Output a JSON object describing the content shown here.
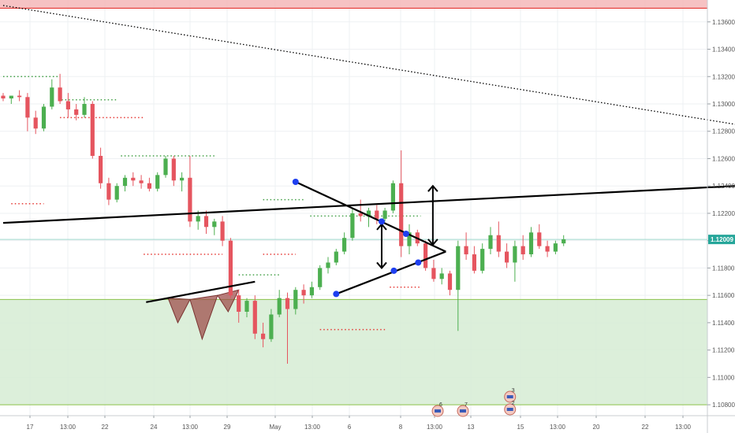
{
  "chart_data": {
    "type": "candlestick",
    "y_axis": {
      "position": "right",
      "range": [
        1.1072,
        1.1376
      ],
      "ticks": [
        1.136,
        1.134,
        1.132,
        1.13,
        1.128,
        1.126,
        1.124,
        1.122,
        1.12,
        1.118,
        1.116,
        1.114,
        1.112,
        1.11,
        1.108
      ],
      "tick_labels": [
        "1.13600",
        "1.13400",
        "1.13200",
        "1.13000",
        "1.12800",
        "1.12600",
        "1.12400",
        "1.12200",
        "1.12000",
        "1.11800",
        "1.11600",
        "1.11400",
        "1.11200",
        "1.11000",
        "1.10800"
      ]
    },
    "x_axis": {
      "tick_labels": [
        "17",
        "13:00",
        "22",
        "24",
        "13:00",
        "29",
        "May",
        "13:00",
        "6",
        "8",
        "13:00",
        "13",
        "15",
        "13:00",
        "20",
        "22",
        "13:00"
      ]
    },
    "current_price": {
      "value": 1.12009,
      "label": "1.12009",
      "color": "#26a69a"
    },
    "zones": [
      {
        "name": "resistance-zone",
        "from": 1.137,
        "to": 1.14,
        "fill": "#f5b7b8",
        "edge": "#e53935"
      },
      {
        "name": "support-zone",
        "from": 1.108,
        "to": 1.1157,
        "fill": "#d6ecd3",
        "edge": "#8bc34a"
      }
    ],
    "candles": [
      [
        1.1306,
        1.1308,
        1.1302,
        1.1304
      ],
      [
        1.1304,
        1.1306,
        1.13,
        1.1306
      ],
      [
        1.1306,
        1.131,
        1.1302,
        1.1305
      ],
      [
        1.1305,
        1.1308,
        1.128,
        1.129
      ],
      [
        1.129,
        1.1295,
        1.1278,
        1.1282
      ],
      [
        1.1282,
        1.13,
        1.128,
        1.1298
      ],
      [
        1.1298,
        1.1318,
        1.1296,
        1.1312
      ],
      [
        1.1312,
        1.1322,
        1.13,
        1.1302
      ],
      [
        1.1302,
        1.1308,
        1.129,
        1.1296
      ],
      [
        1.1296,
        1.13,
        1.1288,
        1.1292
      ],
      [
        1.1292,
        1.1305,
        1.129,
        1.13
      ],
      [
        1.13,
        1.1302,
        1.126,
        1.1262
      ],
      [
        1.1262,
        1.1268,
        1.1238,
        1.1242
      ],
      [
        1.1242,
        1.1246,
        1.1226,
        1.123
      ],
      [
        1.123,
        1.1242,
        1.1228,
        1.124
      ],
      [
        1.124,
        1.1248,
        1.1236,
        1.1246
      ],
      [
        1.1246,
        1.125,
        1.124,
        1.1244
      ],
      [
        1.1244,
        1.1248,
        1.1238,
        1.1242
      ],
      [
        1.1242,
        1.1246,
        1.1236,
        1.1238
      ],
      [
        1.1238,
        1.125,
        1.1236,
        1.1248
      ],
      [
        1.1248,
        1.1262,
        1.1246,
        1.126
      ],
      [
        1.126,
        1.1262,
        1.124,
        1.1244
      ],
      [
        1.1244,
        1.125,
        1.1236,
        1.1246
      ],
      [
        1.1246,
        1.1262,
        1.121,
        1.1214
      ],
      [
        1.1214,
        1.1222,
        1.1208,
        1.1218
      ],
      [
        1.1218,
        1.1222,
        1.1205,
        1.121
      ],
      [
        1.121,
        1.1216,
        1.1204,
        1.1214
      ],
      [
        1.1214,
        1.1218,
        1.1196,
        1.12
      ],
      [
        1.12,
        1.1202,
        1.1158,
        1.116
      ],
      [
        1.116,
        1.1164,
        1.114,
        1.1148
      ],
      [
        1.1148,
        1.1158,
        1.1144,
        1.1156
      ],
      [
        1.1156,
        1.116,
        1.1128,
        1.1132
      ],
      [
        1.1132,
        1.114,
        1.1122,
        1.1128
      ],
      [
        1.1128,
        1.115,
        1.1126,
        1.1146
      ],
      [
        1.1146,
        1.1164,
        1.1144,
        1.1158
      ],
      [
        1.1158,
        1.1162,
        1.111,
        1.115
      ],
      [
        1.115,
        1.1166,
        1.1146,
        1.1164
      ],
      [
        1.1164,
        1.1168,
        1.1154,
        1.116
      ],
      [
        1.116,
        1.117,
        1.1158,
        1.1166
      ],
      [
        1.1166,
        1.1182,
        1.1164,
        1.118
      ],
      [
        1.118,
        1.1188,
        1.1176,
        1.1184
      ],
      [
        1.1184,
        1.1194,
        1.1182,
        1.1192
      ],
      [
        1.1192,
        1.1206,
        1.119,
        1.1202
      ],
      [
        1.1202,
        1.1224,
        1.12,
        1.122
      ],
      [
        1.122,
        1.123,
        1.1214,
        1.1218
      ],
      [
        1.1218,
        1.1224,
        1.121,
        1.1222
      ],
      [
        1.1222,
        1.1226,
        1.1212,
        1.1216
      ],
      [
        1.1216,
        1.1224,
        1.1214,
        1.1222
      ],
      [
        1.1222,
        1.1244,
        1.122,
        1.1242
      ],
      [
        1.1242,
        1.1266,
        1.1188,
        1.1196
      ],
      [
        1.1196,
        1.1212,
        1.119,
        1.1206
      ],
      [
        1.1206,
        1.1208,
        1.1196,
        1.1198
      ],
      [
        1.1198,
        1.12,
        1.1178,
        1.118
      ],
      [
        1.118,
        1.1186,
        1.117,
        1.1172
      ],
      [
        1.1172,
        1.118,
        1.1168,
        1.1176
      ],
      [
        1.1176,
        1.1178,
        1.116,
        1.1164
      ],
      [
        1.1164,
        1.12,
        1.1134,
        1.1196
      ],
      [
        1.1196,
        1.1206,
        1.1186,
        1.119
      ],
      [
        1.119,
        1.1196,
        1.1176,
        1.1178
      ],
      [
        1.1178,
        1.1198,
        1.1176,
        1.1194
      ],
      [
        1.1194,
        1.121,
        1.119,
        1.1204
      ],
      [
        1.1204,
        1.1214,
        1.1188,
        1.1192
      ],
      [
        1.1192,
        1.1198,
        1.118,
        1.1184
      ],
      [
        1.1184,
        1.12,
        1.117,
        1.1196
      ],
      [
        1.1196,
        1.1204,
        1.1186,
        1.119
      ],
      [
        1.119,
        1.121,
        1.1188,
        1.1206
      ],
      [
        1.1206,
        1.1212,
        1.1194,
        1.1196
      ],
      [
        1.1196,
        1.12,
        1.1188,
        1.1192
      ],
      [
        1.1192,
        1.12,
        1.119,
        1.1198
      ],
      [
        1.1198,
        1.1204,
        1.1196,
        1.1201
      ]
    ],
    "drawings": {
      "lines": [
        {
          "name": "long-term-downtrend-line",
          "from": [
            0,
            1.1372
          ],
          "to": [
            90.2,
            1.1285
          ],
          "style": "dotted",
          "color": "#000000"
        },
        {
          "name": "neckline-trendline",
          "from": [
            0,
            1.1213
          ],
          "to": [
            90.2,
            1.124
          ],
          "style": "solid",
          "color": "#000000"
        },
        {
          "name": "inverse-hs-neckline",
          "from": [
            17.6,
            1.1155
          ],
          "to": [
            31,
            1.117
          ],
          "style": "solid",
          "color": "#000000"
        },
        {
          "name": "triangle-upper",
          "from": [
            36,
            1.1243
          ],
          "to": [
            54.5,
            1.1192
          ],
          "style": "solid",
          "color": "#000000"
        },
        {
          "name": "triangle-lower",
          "from": [
            41,
            1.1161
          ],
          "to": [
            54.5,
            1.1192
          ],
          "style": "solid",
          "color": "#000000"
        }
      ],
      "pivots": [
        [
          36,
          1.1243
        ],
        [
          41,
          1.1161
        ],
        [
          46.6,
          1.1214
        ],
        [
          48.1,
          1.1178
        ],
        [
          49.6,
          1.1205
        ],
        [
          51.1,
          1.1184
        ]
      ],
      "arrows": [
        {
          "name": "triangle-height-arrow",
          "x": 46.6,
          "from": 1.118,
          "to": 1.1212
        },
        {
          "name": "breakout-target-arrow",
          "x": 52.9,
          "from": 1.1197,
          "to": 1.124
        }
      ],
      "head_shoulders_triangles": [
        {
          "points": [
            [
              20.3,
              1.1158
            ],
            [
              21.5,
              1.114
            ],
            [
              23.0,
              1.1157
            ]
          ]
        },
        {
          "points": [
            [
              23.0,
              1.1157
            ],
            [
              24.5,
              1.1128
            ],
            [
              26.4,
              1.116
            ]
          ]
        },
        {
          "points": [
            [
              26.4,
              1.116
            ],
            [
              27.7,
              1.1148
            ],
            [
              29.0,
              1.1164
            ]
          ]
        }
      ],
      "red_dotted_levels": [
        {
          "from": 7,
          "to": 17.2,
          "y": 1.129
        },
        {
          "from": 1,
          "to": 5,
          "y": 1.1227
        },
        {
          "from": 17.3,
          "to": 27,
          "y": 1.119
        },
        {
          "from": 32,
          "to": 36,
          "y": 1.119
        },
        {
          "from": 39,
          "to": 47,
          "y": 1.1135
        },
        {
          "from": 47.6,
          "to": 51.4,
          "y": 1.1166
        }
      ],
      "green_dotted_levels": [
        {
          "from": 0,
          "to": 7,
          "y": 1.132
        },
        {
          "from": 7.2,
          "to": 14,
          "y": 1.1303
        },
        {
          "from": 14.5,
          "to": 26,
          "y": 1.1262
        },
        {
          "from": 29,
          "to": 34,
          "y": 1.1175
        },
        {
          "from": 32,
          "to": 37.2,
          "y": 1.123
        },
        {
          "from": 37.8,
          "to": 51.4,
          "y": 1.1218
        }
      ]
    },
    "event_badges": [
      {
        "x": 53.5,
        "label": "6"
      },
      {
        "x": 56.6,
        "label": "7"
      },
      {
        "x": 62.4,
        "label": "3"
      },
      {
        "x": 62.4,
        "label": "2"
      }
    ]
  }
}
